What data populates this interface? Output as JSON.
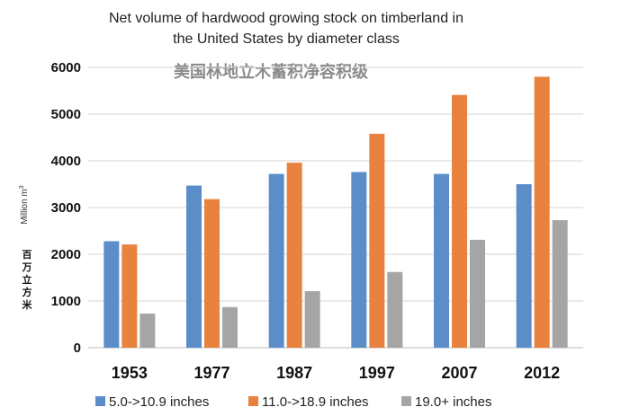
{
  "chart_data": {
    "type": "bar",
    "title_lines": [
      "Net volume of hardwood growing stock on timberland in",
      "the United States by diameter class"
    ],
    "subtitle": "美国林地立木蓄积净容积级",
    "ylabel_en": "Million m",
    "ylabel_en_sup": "3",
    "ylabel_cn": [
      "百",
      "万",
      "立",
      "方",
      "米"
    ],
    "ylim": [
      0,
      6000
    ],
    "yticks": [
      "0",
      "1000",
      "2000",
      "3000",
      "4000",
      "5000",
      "6000"
    ],
    "categories": [
      "1953",
      "1977",
      "1987",
      "1997",
      "2007",
      "2012"
    ],
    "series": [
      {
        "name": "5.0->10.9 inches",
        "color": "#5b8ec9",
        "values": [
          2280,
          3470,
          3720,
          3760,
          3720,
          3500
        ]
      },
      {
        "name": "11.0->18.9 inches",
        "color": "#e8823e",
        "values": [
          2210,
          3180,
          3960,
          4580,
          5410,
          5800
        ]
      },
      {
        "name": "19.0+ inches",
        "color": "#a5a5a5",
        "values": [
          730,
          870,
          1210,
          1620,
          2310,
          2730
        ]
      }
    ],
    "grid": true,
    "legend_position": "bottom"
  }
}
